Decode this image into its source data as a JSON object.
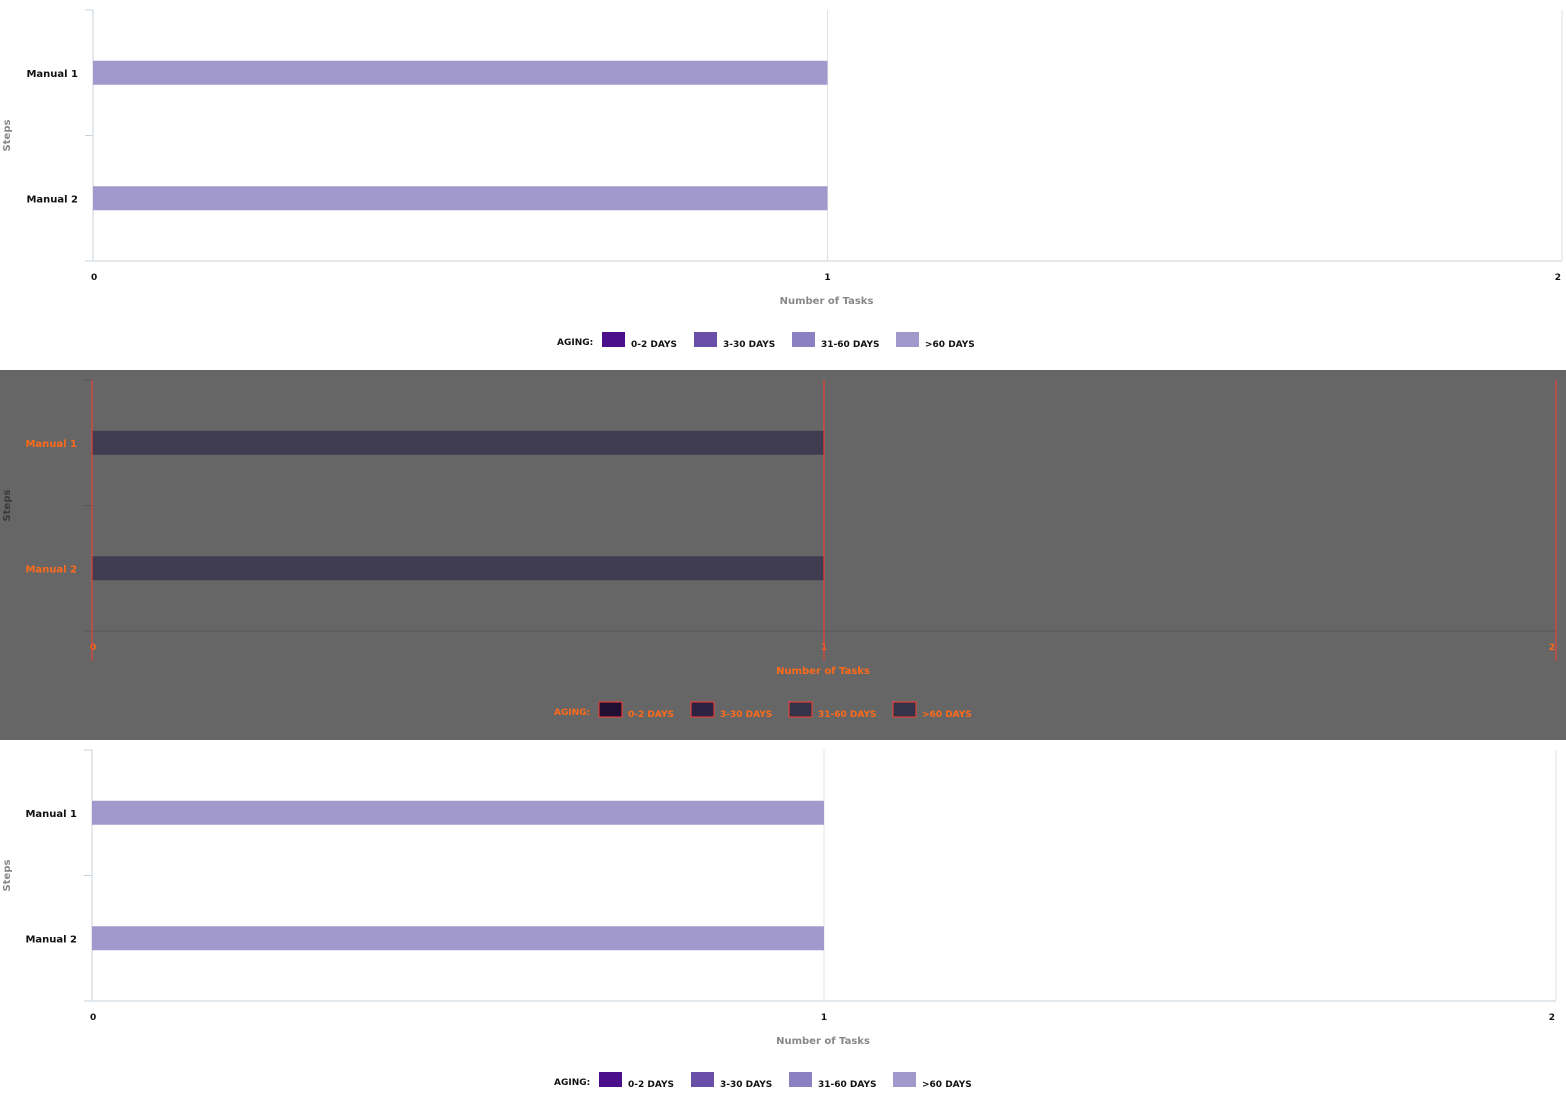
{
  "colors": {
    "c_0_2": "#4b0f8c",
    "c_3_30": "#6a4fa8",
    "c_31_60": "#8a80c2",
    "c_60_plus": "#a199cb",
    "bar_dim": "#3f3c52",
    "panel_dim_bg": "#666666",
    "highlight": "#ff3b30"
  },
  "chart_data": [
    {
      "type": "bar",
      "orientation": "horizontal",
      "categories": [
        "Manual 1",
        "Manual 2"
      ],
      "series": [
        {
          "name": ">60 DAYS",
          "values": [
            1,
            1
          ]
        }
      ],
      "xlabel": "Number of Tasks",
      "ylabel": "Steps",
      "xlim": [
        0,
        2
      ],
      "xticks": [
        "0",
        "1",
        "2"
      ],
      "grid": true,
      "legend": {
        "title": "AGING:",
        "placement": "bottom-center",
        "entries": [
          "0-2 DAYS",
          "3-30 DAYS",
          "31-60 DAYS",
          ">60 DAYS"
        ]
      }
    },
    {
      "type": "bar",
      "orientation": "horizontal",
      "categories": [
        "Manual 1",
        "Manual 2"
      ],
      "series": [
        {
          "name": ">60 DAYS",
          "values": [
            1,
            1
          ]
        }
      ],
      "xlabel": "Number of Tasks",
      "ylabel": "Steps",
      "xlim": [
        0,
        2
      ],
      "xticks": [
        "0",
        "1",
        "2"
      ],
      "grid": true,
      "dimmed": true,
      "legend": {
        "title": "AGING:",
        "placement": "bottom-center",
        "entries": [
          "0-2 DAYS",
          "3-30 DAYS",
          "31-60 DAYS",
          ">60 DAYS"
        ]
      }
    },
    {
      "type": "bar",
      "orientation": "horizontal",
      "categories": [
        "Manual 1",
        "Manual 2"
      ],
      "series": [
        {
          "name": ">60 DAYS",
          "values": [
            1,
            1
          ]
        }
      ],
      "xlabel": "Number of Tasks",
      "ylabel": "Steps",
      "xlim": [
        0,
        2
      ],
      "xticks": [
        "0",
        "1",
        "2"
      ],
      "grid": true,
      "legend": {
        "title": "AGING:",
        "placement": "bottom-center",
        "entries": [
          "0-2 DAYS",
          "3-30 DAYS",
          "31-60 DAYS",
          ">60 DAYS"
        ]
      }
    }
  ]
}
